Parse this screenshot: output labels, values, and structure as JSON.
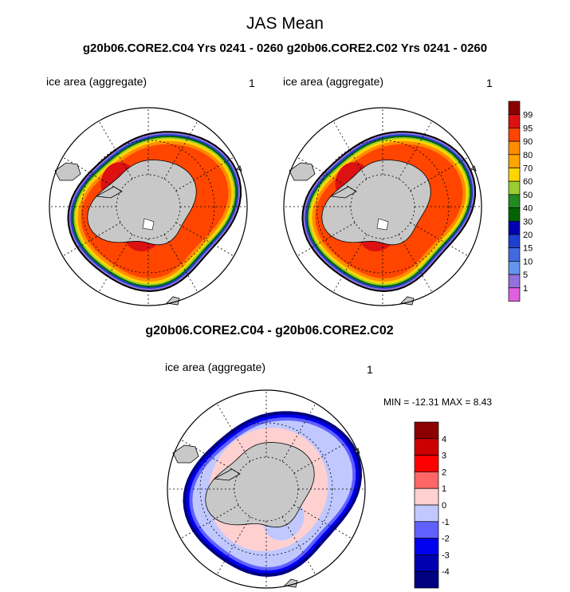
{
  "header": {
    "title": "JAS Mean",
    "subtitle": "g20b06.CORE2.C04  Yrs 0241 - 0260 g20b06.CORE2.C02  Yrs 0241 - 0260",
    "diff_title": "g20b06.CORE2.C04 - g20b06.CORE2.C02"
  },
  "panels": {
    "left": {
      "label": "ice area  (aggregate)",
      "number": "1"
    },
    "right": {
      "label": "ice area  (aggregate)",
      "number": "1"
    },
    "diff": {
      "label": "ice area  (aggregate)",
      "number": "1",
      "minmax": "MIN = -12.31 MAX =   8.43"
    }
  },
  "chart_data": [
    {
      "type": "heatmap",
      "projection": "south polar stereographic",
      "variable": "ice area  (aggregate)",
      "colorbar": {
        "levels": [
          "1",
          "5",
          "10",
          "15",
          "20",
          "30",
          "40",
          "50",
          "60",
          "70",
          "80",
          "90",
          "95",
          "99"
        ],
        "colors": [
          "#e060e0",
          "#9370db",
          "#6495ed",
          "#4169e1",
          "#1e3fd0",
          "#0000b0",
          "#006400",
          "#228b22",
          "#9acd32",
          "#ffd700",
          "#ffa500",
          "#ff8c00",
          "#ff4500",
          "#dd1111",
          "#8b0000"
        ]
      }
    },
    {
      "type": "heatmap",
      "projection": "south polar stereographic",
      "variable": "ice area  (aggregate)",
      "colorbar": {
        "levels": [
          "1",
          "5",
          "10",
          "15",
          "20",
          "30",
          "40",
          "50",
          "60",
          "70",
          "80",
          "90",
          "95",
          "99"
        ],
        "colors": [
          "#e060e0",
          "#9370db",
          "#6495ed",
          "#4169e1",
          "#1e3fd0",
          "#0000b0",
          "#006400",
          "#228b22",
          "#9acd32",
          "#ffd700",
          "#ffa500",
          "#ff8c00",
          "#ff4500",
          "#dd1111",
          "#8b0000"
        ]
      }
    },
    {
      "type": "heatmap",
      "projection": "south polar stereographic",
      "variable": "ice area  (aggregate)",
      "min": -12.31,
      "max": 8.43,
      "colorbar": {
        "levels": [
          "4",
          "3",
          "2",
          "1",
          "0",
          "-1",
          "-2",
          "-3",
          "-4"
        ],
        "colors": [
          "#8b0000",
          "#cc0000",
          "#ff0000",
          "#ff6666",
          "#ffd0d0",
          "#c0c8ff",
          "#6060ff",
          "#0000ee",
          "#0000b0",
          "#000080"
        ]
      }
    }
  ]
}
